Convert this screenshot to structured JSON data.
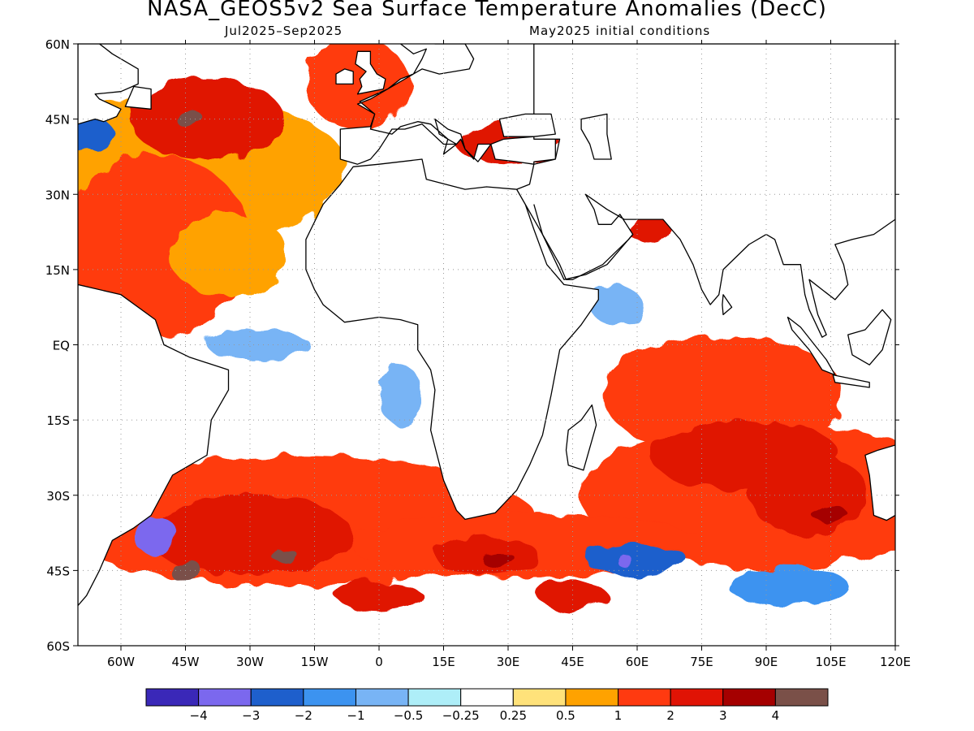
{
  "title": "NASA_GEOS5v2 Sea Surface Temperature Anomalies (DecC)",
  "forecast_period": "Jul2025–Sep2025",
  "initial_conditions": "May2025 initial conditions",
  "lon_labels": [
    "60W",
    "45W",
    "30W",
    "15W",
    "0",
    "15E",
    "30E",
    "45E",
    "60E",
    "75E",
    "90E",
    "105E",
    "120E"
  ],
  "lat_labels": [
    "60N",
    "45N",
    "30N",
    "15N",
    "EQ",
    "15S",
    "30S",
    "45S",
    "60S"
  ],
  "map_extent": {
    "lon": [
      -70,
      120
    ],
    "lat": [
      -60,
      60
    ]
  },
  "colorbar": {
    "colors": [
      "#3a28b8",
      "#7b68ee",
      "#1e5fcc",
      "#3c93f0",
      "#78b4f5",
      "#aeeef8",
      "#ffffff",
      "#ffe27a",
      "#ffa200",
      "#ff3a10",
      "#e01305",
      "#a50000",
      "#7a5048"
    ],
    "labels": [
      "−4",
      "−3",
      "−2",
      "−1",
      "−0.5",
      "−0.25",
      "0.25",
      "0.5",
      "1",
      "2",
      "3",
      "4"
    ]
  },
  "anomaly_regions": [
    {
      "level": "1",
      "lon": -52,
      "lat": 20,
      "rx": 22,
      "ry": 18
    },
    {
      "level": "0.5",
      "lon": -35,
      "lat": 18,
      "rx": 14,
      "ry": 8
    },
    {
      "level": "2",
      "lon": -40,
      "lat": 45,
      "rx": 18,
      "ry": 8
    },
    {
      "level": "4",
      "lon": -44,
      "lat": 45,
      "rx": 3,
      "ry": 2
    },
    {
      "level": "-2",
      "lon": -68,
      "lat": 42,
      "rx": 6,
      "ry": 4
    },
    {
      "level": "1",
      "lon": -5,
      "lat": 52,
      "rx": 12,
      "ry": 9
    },
    {
      "level": "2",
      "lon": 30,
      "lat": 40,
      "rx": 12,
      "ry": 4
    },
    {
      "level": "-0.5",
      "lon": -28,
      "lat": 0,
      "rx": 12,
      "ry": 3
    },
    {
      "level": "-0.5",
      "lon": 5,
      "lat": -10,
      "rx": 5,
      "ry": 6
    },
    {
      "level": "1",
      "lon": 80,
      "lat": -10,
      "rx": 28,
      "ry": 12
    },
    {
      "level": "2",
      "lon": 85,
      "lat": -22,
      "rx": 22,
      "ry": 7
    },
    {
      "level": "2",
      "lon": 100,
      "lat": -30,
      "rx": 14,
      "ry": 8
    },
    {
      "level": "3",
      "lon": 105,
      "lat": -34,
      "rx": 4,
      "ry": 2
    },
    {
      "level": "-0.5",
      "lon": 55,
      "lat": 8,
      "rx": 6,
      "ry": 4
    },
    {
      "level": "2",
      "lon": 63,
      "lat": 23,
      "rx": 5,
      "ry": 3
    },
    {
      "level": "2",
      "lon": -30,
      "lat": -38,
      "rx": 24,
      "ry": 8
    },
    {
      "level": "4",
      "lon": -45,
      "lat": -45,
      "rx": 4,
      "ry": 2
    },
    {
      "level": "4",
      "lon": -22,
      "lat": -42,
      "rx": 3,
      "ry": 1.5
    },
    {
      "level": "-3",
      "lon": -52,
      "lat": -38,
      "rx": 5,
      "ry": 4
    },
    {
      "level": "2",
      "lon": 25,
      "lat": -42,
      "rx": 12,
      "ry": 4
    },
    {
      "level": "3",
      "lon": 28,
      "lat": -43,
      "rx": 4,
      "ry": 1.5
    },
    {
      "level": "-2",
      "lon": 60,
      "lat": -43,
      "rx": 12,
      "ry": 3
    },
    {
      "level": "-3",
      "lon": 57,
      "lat": -43,
      "rx": 2,
      "ry": 1
    },
    {
      "level": "-1",
      "lon": 95,
      "lat": -48,
      "rx": 14,
      "ry": 4
    },
    {
      "level": "2",
      "lon": 45,
      "lat": -50,
      "rx": 8,
      "ry": 3
    },
    {
      "level": "2",
      "lon": 0,
      "lat": -50,
      "rx": 10,
      "ry": 3
    }
  ]
}
